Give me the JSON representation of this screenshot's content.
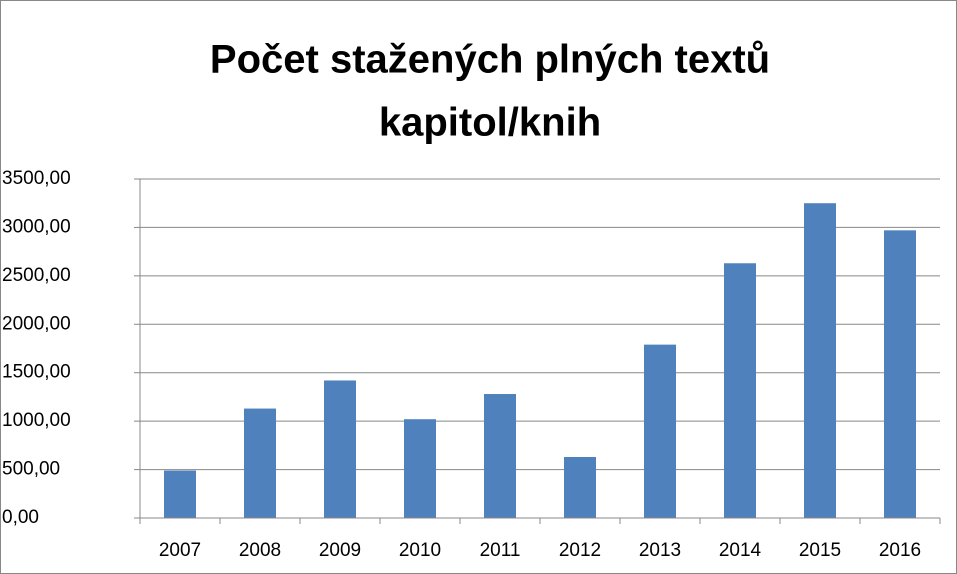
{
  "chart_data": {
    "type": "bar",
    "title": [
      "Počet stažených plných textů",
      "kapitol/knih"
    ],
    "categories": [
      "2007",
      "2008",
      "2009",
      "2010",
      "2011",
      "2012",
      "2013",
      "2014",
      "2015",
      "2016"
    ],
    "values": [
      490,
      1130,
      1420,
      1020,
      1280,
      630,
      1790,
      2630,
      3250,
      2970
    ],
    "color": "#4f81bd",
    "ylim": [
      0,
      3500
    ],
    "yticks": [
      {
        "value": 0,
        "label": "0,00"
      },
      {
        "value": 500,
        "label": "500,00"
      },
      {
        "value": 1000,
        "label": "1000,00"
      },
      {
        "value": 1500,
        "label": "1500,00"
      },
      {
        "value": 2000,
        "label": "2000,00"
      },
      {
        "value": 2500,
        "label": "2500,00"
      },
      {
        "value": 3000,
        "label": "3000,00"
      },
      {
        "value": 3500,
        "label": "3500,00"
      }
    ],
    "grid": true
  }
}
